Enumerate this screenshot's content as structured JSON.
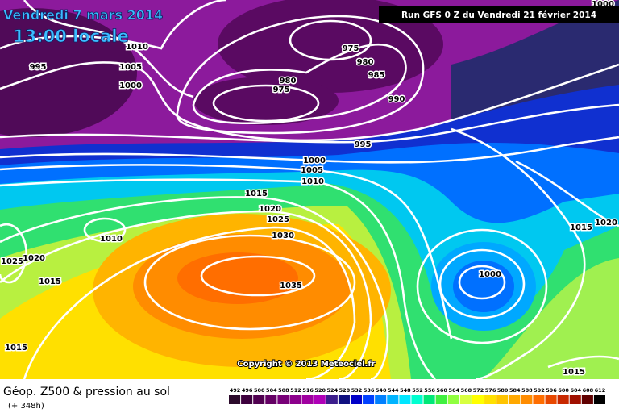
{
  "header": {
    "title": "Vendredi 7 mars 2014",
    "time": "13:00 locale",
    "run": "Run GFS 0 Z du Vendredi 21 février 2014"
  },
  "pressure_labels": [
    1010,
    995,
    1005,
    1000,
    975,
    980,
    985,
    980,
    975,
    990,
    995,
    1000,
    1005,
    1010,
    1015,
    1020,
    1025,
    1030,
    1035,
    1010,
    1025,
    1020,
    1015,
    1015,
    1000,
    1015,
    1020,
    1015,
    1000
  ],
  "copyright": "Copyright © 2013 Meteociel.fr",
  "footer": {
    "title": "Géop. Z500 & pression au sol",
    "lead": "(+ 348h)"
  },
  "legend": {
    "values": [
      492,
      496,
      500,
      504,
      508,
      512,
      516,
      520,
      524,
      528,
      532,
      536,
      540,
      544,
      548,
      552,
      556,
      560,
      564,
      568,
      572,
      576,
      580,
      584,
      588,
      592,
      596,
      600,
      604,
      608,
      612
    ],
    "colors": [
      "#2b0a2b",
      "#3d003d",
      "#500050",
      "#640064",
      "#780078",
      "#8c008c",
      "#a000a0",
      "#b000b8",
      "#3c1e8c",
      "#101080",
      "#0000c8",
      "#0040ff",
      "#0080ff",
      "#00b4ff",
      "#00e6ff",
      "#00ffd0",
      "#00e878",
      "#40f040",
      "#90ff40",
      "#d8ff40",
      "#ffff00",
      "#ffe000",
      "#ffc400",
      "#ffa800",
      "#ff8c00",
      "#ff6e00",
      "#e84800",
      "#c82800",
      "#a01000",
      "#600000",
      "#000000"
    ]
  }
}
